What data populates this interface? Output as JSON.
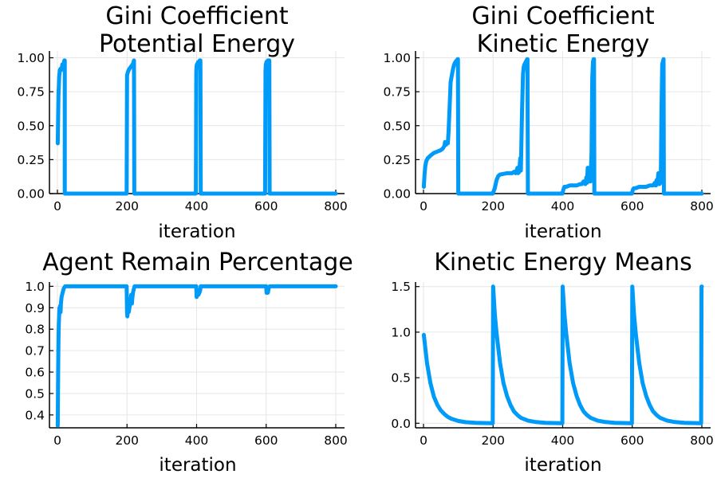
{
  "chart_data": [
    {
      "type": "line",
      "title": "Gini Coefficient",
      "subtitle": "Potential Energy",
      "xlabel": "iteration",
      "ylabel": "",
      "xlim": [
        0,
        800
      ],
      "ylim": [
        0,
        1.05
      ],
      "xticks": [
        0,
        200,
        400,
        600,
        800
      ],
      "xtick_labels": [
        "0",
        "200",
        "400",
        "600",
        "800"
      ],
      "yticks": [
        0,
        0.25,
        0.5,
        0.75,
        1.0
      ],
      "ytick_labels": [
        "0.00",
        "0.25",
        "0.50",
        "0.75",
        "1.00"
      ],
      "grid": true,
      "legend": "none",
      "color": "#009af9",
      "series": [
        {
          "x": [
            1,
            3,
            5,
            7,
            9,
            11,
            13,
            14,
            16,
            18,
            19,
            20,
            21,
            21,
            25,
            50,
            100,
            150,
            199,
            200,
            201,
            203,
            205,
            207,
            210,
            213,
            216,
            218,
            219,
            220,
            221,
            230,
            300,
            398,
            399,
            400,
            401,
            403,
            405,
            407,
            409,
            410,
            411,
            412,
            420,
            500,
            597,
            598,
            599,
            600,
            601,
            603,
            605,
            607,
            608,
            609,
            610,
            620,
            700,
            800
          ],
          "y": [
            0.37,
            0.72,
            0.86,
            0.91,
            0.92,
            0.91,
            0.93,
            0.95,
            0.94,
            0.96,
            0.97,
            0.98,
            0.98,
            0.0,
            0.0,
            0.0,
            0.0,
            0.0,
            0.0,
            0.87,
            0.88,
            0.9,
            0.91,
            0.92,
            0.93,
            0.94,
            0.95,
            0.96,
            0.97,
            0.98,
            0.0,
            0.0,
            0.0,
            0.0,
            0.9,
            0.94,
            0.95,
            0.96,
            0.97,
            0.97,
            0.98,
            0.98,
            0.98,
            0.0,
            0.0,
            0.0,
            0.0,
            0.9,
            0.95,
            0.96,
            0.97,
            0.97,
            0.98,
            0.98,
            0.98,
            0.98,
            0.0,
            0.0,
            0.0,
            0.0
          ]
        }
      ]
    },
    {
      "type": "line",
      "title": "Gini Coefficient",
      "subtitle": "Kinetic Energy",
      "xlabel": "iteration",
      "ylabel": "",
      "xlim": [
        0,
        800
      ],
      "ylim": [
        0,
        1.05
      ],
      "xticks": [
        0,
        200,
        400,
        600,
        800
      ],
      "xtick_labels": [
        "0",
        "200",
        "400",
        "600",
        "800"
      ],
      "yticks": [
        0,
        0.25,
        0.5,
        0.75,
        1.0
      ],
      "ytick_labels": [
        "0.00",
        "0.25",
        "0.50",
        "0.75",
        "1.00"
      ],
      "grid": true,
      "legend": "none",
      "color": "#009af9",
      "series": [
        {
          "x": [
            1,
            3,
            5,
            8,
            12,
            20,
            30,
            40,
            50,
            55,
            60,
            62,
            65,
            68,
            70,
            72,
            75,
            78,
            80,
            82,
            85,
            88,
            90,
            92,
            95,
            97,
            98,
            99,
            100,
            150,
            199,
            205,
            210,
            215,
            220,
            240,
            255,
            260,
            265,
            270,
            272,
            275,
            278,
            280,
            283,
            286,
            288,
            290,
            292,
            294,
            296,
            297,
            298,
            299,
            300,
            350,
            399,
            402,
            405,
            410,
            420,
            440,
            450,
            455,
            460,
            465,
            468,
            470,
            472,
            475,
            478,
            480,
            483,
            485,
            487,
            488,
            489,
            490,
            491,
            550,
            599,
            602,
            605,
            610,
            620,
            640,
            650,
            660,
            665,
            668,
            670,
            672,
            675,
            678,
            680,
            682,
            684,
            686,
            688,
            689,
            690,
            691,
            750,
            800
          ],
          "y": [
            0.05,
            0.14,
            0.2,
            0.24,
            0.26,
            0.28,
            0.3,
            0.31,
            0.32,
            0.33,
            0.35,
            0.38,
            0.36,
            0.38,
            0.37,
            0.45,
            0.63,
            0.82,
            0.85,
            0.88,
            0.92,
            0.95,
            0.96,
            0.97,
            0.98,
            0.98,
            0.99,
            0.99,
            0.0,
            0.0,
            0.0,
            0.04,
            0.1,
            0.13,
            0.14,
            0.15,
            0.15,
            0.16,
            0.15,
            0.19,
            0.15,
            0.16,
            0.26,
            0.17,
            0.6,
            0.88,
            0.93,
            0.95,
            0.96,
            0.97,
            0.98,
            0.98,
            0.99,
            0.99,
            0.0,
            0.0,
            0.0,
            0.03,
            0.05,
            0.05,
            0.06,
            0.06,
            0.07,
            0.07,
            0.09,
            0.07,
            0.12,
            0.08,
            0.19,
            0.09,
            0.11,
            0.09,
            0.3,
            0.85,
            0.97,
            0.98,
            0.99,
            0.99,
            0.0,
            0.0,
            0.0,
            0.03,
            0.04,
            0.04,
            0.05,
            0.05,
            0.06,
            0.06,
            0.08,
            0.06,
            0.1,
            0.07,
            0.15,
            0.07,
            0.09,
            0.08,
            0.6,
            0.95,
            0.97,
            0.98,
            0.99,
            0.0,
            0.0,
            0.0
          ]
        }
      ]
    },
    {
      "type": "line",
      "title": "Agent Remain Percentage",
      "subtitle": "",
      "xlabel": "iteration",
      "ylabel": "",
      "xlim": [
        0,
        800
      ],
      "ylim": [
        0.34,
        1.02
      ],
      "xticks": [
        0,
        200,
        400,
        600,
        800
      ],
      "xtick_labels": [
        "0",
        "200",
        "400",
        "600",
        "800"
      ],
      "yticks": [
        0.4,
        0.5,
        0.6,
        0.7,
        0.8,
        0.9,
        1.0
      ],
      "ytick_labels": [
        "0.4",
        "0.5",
        "0.6",
        "0.7",
        "0.8",
        "0.9",
        "1.0"
      ],
      "grid": true,
      "legend": "none",
      "color": "#009af9",
      "series": [
        {
          "x": [
            1,
            2,
            3,
            4,
            5,
            6,
            7,
            8,
            9,
            10,
            12,
            15,
            18,
            22,
            30,
            100,
            199,
            200,
            201,
            202,
            203,
            205,
            207,
            210,
            212,
            214,
            215,
            217,
            220,
            222,
            230,
            300,
            399,
            400,
            401,
            403,
            405,
            408,
            410,
            412,
            420,
            500,
            600,
            601,
            603,
            605,
            607,
            610,
            620,
            700,
            800
          ],
          "y": [
            0.35,
            0.6,
            0.75,
            0.82,
            0.87,
            0.9,
            0.89,
            0.91,
            0.88,
            0.92,
            0.95,
            0.97,
            0.99,
            1.0,
            1.0,
            1.0,
            1.0,
            0.88,
            0.86,
            0.88,
            0.89,
            0.88,
            0.9,
            0.93,
            0.96,
            0.92,
            0.94,
            0.97,
            0.99,
            1.0,
            1.0,
            1.0,
            1.0,
            0.95,
            0.96,
            0.97,
            0.96,
            0.97,
            0.98,
            1.0,
            1.0,
            1.0,
            1.0,
            0.97,
            0.98,
            0.97,
            0.99,
            1.0,
            1.0,
            1.0,
            1.0
          ]
        }
      ]
    },
    {
      "type": "line",
      "title": "Kinetic Energy Means",
      "subtitle": "",
      "xlabel": "iteration",
      "ylabel": "",
      "xlim": [
        0,
        800
      ],
      "ylim": [
        -0.05,
        1.55
      ],
      "xticks": [
        0,
        200,
        400,
        600,
        800
      ],
      "xtick_labels": [
        "0",
        "200",
        "400",
        "600",
        "800"
      ],
      "yticks": [
        0,
        0.5,
        1.0,
        1.5
      ],
      "ytick_labels": [
        "0.0",
        "0.5",
        "1.0",
        "1.5"
      ],
      "grid": true,
      "legend": "none",
      "color": "#009af9",
      "series": [
        {
          "x": [
            1,
            10,
            20,
            30,
            40,
            50,
            60,
            70,
            80,
            100,
            120,
            150,
            199,
            200,
            205,
            210,
            220,
            230,
            240,
            250,
            260,
            270,
            280,
            300,
            320,
            350,
            399,
            400,
            405,
            410,
            420,
            430,
            440,
            450,
            460,
            470,
            480,
            500,
            520,
            550,
            599,
            600,
            605,
            610,
            620,
            630,
            640,
            650,
            660,
            670,
            680,
            700,
            720,
            750,
            798,
            799,
            800
          ],
          "y": [
            0.97,
            0.66,
            0.44,
            0.29,
            0.2,
            0.14,
            0.1,
            0.07,
            0.05,
            0.025,
            0.012,
            0.005,
            0.0,
            1.5,
            1.2,
            0.99,
            0.66,
            0.44,
            0.3,
            0.2,
            0.13,
            0.09,
            0.06,
            0.03,
            0.015,
            0.005,
            0.0,
            1.5,
            1.2,
            0.99,
            0.66,
            0.44,
            0.3,
            0.2,
            0.13,
            0.09,
            0.06,
            0.03,
            0.015,
            0.005,
            0.0,
            1.5,
            1.2,
            0.99,
            0.66,
            0.44,
            0.3,
            0.2,
            0.13,
            0.09,
            0.06,
            0.03,
            0.015,
            0.005,
            0.0,
            1.5,
            1.5
          ]
        }
      ]
    }
  ]
}
